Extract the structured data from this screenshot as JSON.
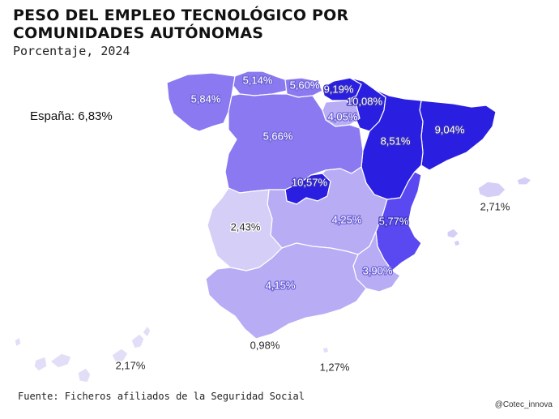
{
  "title": "PESO DEL EMPLEO TECNOLÓGICO POR COMUNIDADES AUTÓNOMAS",
  "subtitle": "Porcentaje, 2024",
  "national_total": "España: 6,83%",
  "source": "Fuente: Ficheros afiliados de la Seguridad Social",
  "credit": "@Cotec_innova",
  "colors": {
    "very_high": "#2a1fe0",
    "high": "#5a48f0",
    "medium_high": "#8a79f0",
    "medium": "#b8adf5",
    "low": "#d5cff7",
    "very_low": "#e2def8"
  },
  "regions": [
    {
      "id": "galicia",
      "label": "5,84%",
      "value": 5.84,
      "level": "medium_high"
    },
    {
      "id": "asturias",
      "label": "5,14%",
      "value": 5.14,
      "level": "medium_high"
    },
    {
      "id": "cantabria",
      "label": "5,60%",
      "value": 5.6,
      "level": "medium_high"
    },
    {
      "id": "pais-vasco",
      "label": "9,19%",
      "value": 9.19,
      "level": "very_high"
    },
    {
      "id": "navarra",
      "label": "10,08%",
      "value": 10.08,
      "level": "very_high"
    },
    {
      "id": "la-rioja",
      "label": "4,05%",
      "value": 4.05,
      "level": "medium"
    },
    {
      "id": "cataluna",
      "label": "9,04%",
      "value": 9.04,
      "level": "very_high"
    },
    {
      "id": "aragon",
      "label": "8,51%",
      "value": 8.51,
      "level": "very_high"
    },
    {
      "id": "castilla-y-leon",
      "label": "5,66%",
      "value": 5.66,
      "level": "medium_high"
    },
    {
      "id": "madrid",
      "label": "10,57%",
      "value": 10.57,
      "level": "very_high"
    },
    {
      "id": "castilla-la-mancha",
      "label": "4,25%",
      "value": 4.25,
      "level": "medium"
    },
    {
      "id": "comunidad-valenciana",
      "label": "5,77%",
      "value": 5.77,
      "level": "high"
    },
    {
      "id": "extremadura",
      "label": "2,43%",
      "value": 2.43,
      "level": "low"
    },
    {
      "id": "murcia",
      "label": "3,90%",
      "value": 3.9,
      "level": "medium"
    },
    {
      "id": "andalucia",
      "label": "4,15%",
      "value": 4.15,
      "level": "medium"
    },
    {
      "id": "baleares",
      "label": "2,71%",
      "value": 2.71,
      "level": "low"
    },
    {
      "id": "canarias",
      "label": "2,17%",
      "value": 2.17,
      "level": "very_low"
    },
    {
      "id": "ceuta",
      "label": "0,98%",
      "value": 0.98,
      "level": "very_low"
    },
    {
      "id": "melilla",
      "label": "1,27%",
      "value": 1.27,
      "level": "very_low"
    }
  ]
}
